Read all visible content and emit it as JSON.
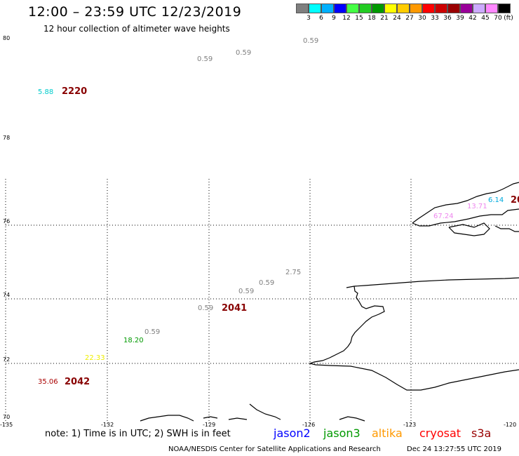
{
  "header": {
    "title": "12:00 – 23:59 UTC 12/23/2019",
    "subtitle": "12 hour collection of altimeter wave heights"
  },
  "legend": {
    "colors": [
      "#7f7f7f",
      "#00ffff",
      "#00b0ff",
      "#0000ff",
      "#44ff44",
      "#22cc22",
      "#009900",
      "#ffff00",
      "#ffcc00",
      "#ff9900",
      "#ff0000",
      "#cc0000",
      "#990000",
      "#990099",
      "#ccaaff",
      "#ff88ff",
      "#000000"
    ],
    "labels": [
      "3",
      "6",
      "9",
      "12",
      "15",
      "18",
      "21",
      "24",
      "27",
      "30",
      "33",
      "36",
      "39",
      "42",
      "45",
      "70",
      "(ft)"
    ]
  },
  "axes": {
    "lat_labels": [
      "80",
      "78",
      "76",
      "74",
      "72",
      "70"
    ],
    "lon_labels": [
      "-135",
      "-132",
      "-129",
      "-126",
      "-123",
      "-120"
    ]
  },
  "measurements": [
    {
      "text": "0.59",
      "color": "#808080"
    },
    {
      "text": "0.59",
      "color": "#808080"
    },
    {
      "text": "0.59",
      "color": "#808080"
    },
    {
      "text": "5.88",
      "color": "#00cccc"
    },
    {
      "text": "2220",
      "color": "#880000"
    },
    {
      "text": "13.71",
      "color": "#ee88ee"
    },
    {
      "text": "6.14",
      "color": "#00aadd"
    },
    {
      "text": "20",
      "color": "#880000"
    },
    {
      "text": "67.24",
      "color": "#ee88ee"
    },
    {
      "text": "2.75",
      "color": "#808080"
    },
    {
      "text": "0.59",
      "color": "#808080"
    },
    {
      "text": "0.59",
      "color": "#808080"
    },
    {
      "text": "0.59",
      "color": "#808080"
    },
    {
      "text": "2041",
      "color": "#880000"
    },
    {
      "text": "0.59",
      "color": "#808080"
    },
    {
      "text": "18.20",
      "color": "#009900"
    },
    {
      "text": "22.33",
      "color": "#eeee00"
    },
    {
      "text": "35.06",
      "color": "#aa0000"
    },
    {
      "text": "2042",
      "color": "#880000"
    }
  ],
  "footer": {
    "note": "note: 1) Time is in UTC; 2) SWH is in feet",
    "satellites": [
      {
        "name": "jason2",
        "color": "#0000ff"
      },
      {
        "name": "jason3",
        "color": "#009900"
      },
      {
        "name": "altika",
        "color": "#ff9900"
      },
      {
        "name": "cryosat",
        "color": "#ff0000"
      },
      {
        "name": "s3a",
        "color": "#990000"
      }
    ],
    "center": "NOAA/NESDIS Center for Satellite Applications and Research",
    "timestamp": "Dec 24 13:27:55 UTC 2019"
  }
}
